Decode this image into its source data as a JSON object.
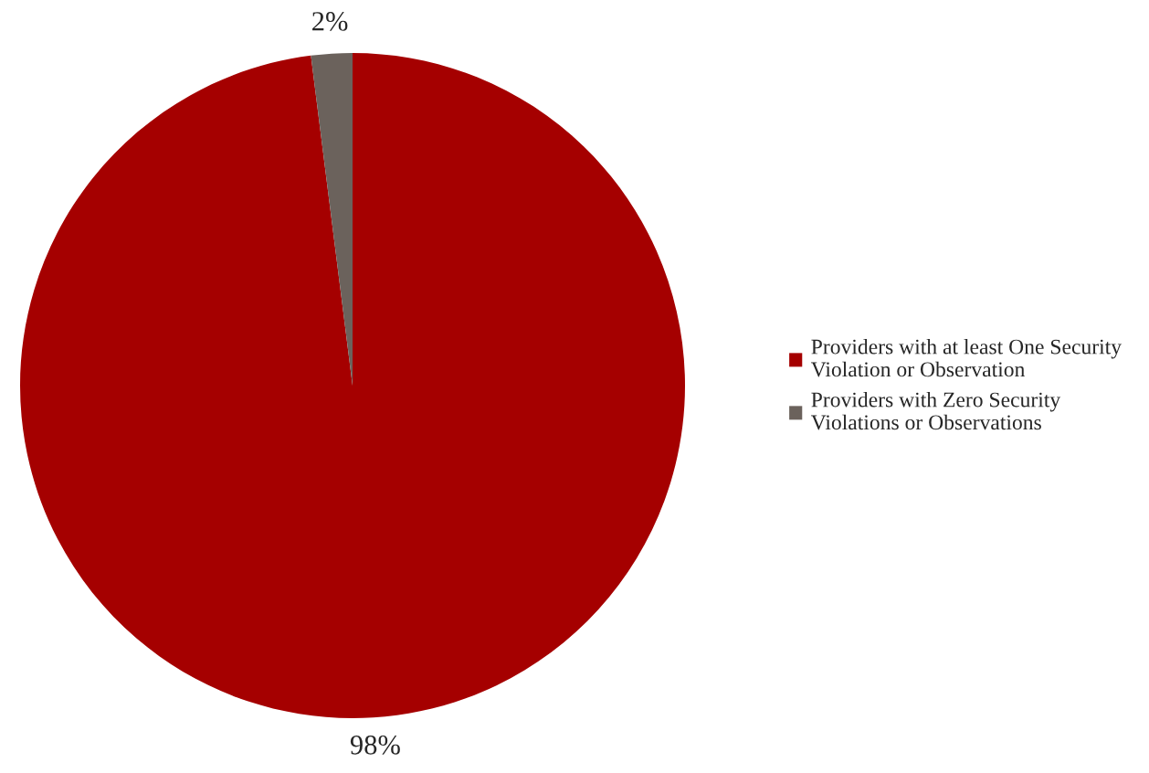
{
  "chart_data": {
    "type": "pie",
    "categories": [
      "Providers with at least One Security Violation or Observation",
      "Providers with Zero Security Violations or Observations"
    ],
    "values": [
      98,
      2
    ],
    "colors": [
      "#a50000",
      "#6b625c"
    ],
    "value_labels": [
      "98%",
      "2%"
    ],
    "legend": "right"
  }
}
